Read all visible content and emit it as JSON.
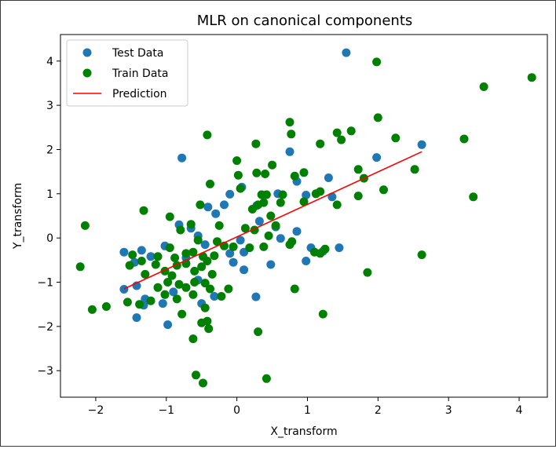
{
  "chart_data": {
    "type": "scatter",
    "title": "MLR on canonical components",
    "xlabel": "X_transform",
    "ylabel": "Y_transform",
    "xlim": [
      -2.5,
      4.4
    ],
    "ylim": [
      -3.6,
      4.6
    ],
    "xticks": [
      -2,
      -1,
      0,
      1,
      2,
      3,
      4
    ],
    "yticks": [
      -3,
      -2,
      -1,
      0,
      1,
      2,
      3,
      4
    ],
    "xtick_labels": [
      "−2",
      "−1",
      "0",
      "1",
      "2",
      "3",
      "4"
    ],
    "ytick_labels": [
      "−3",
      "−2",
      "−1",
      "0",
      "1",
      "2",
      "3",
      "4"
    ],
    "grid": false,
    "legend_position": "top-left",
    "series": [
      {
        "name": "Test Data",
        "kind": "scatter",
        "color": "#1f77b4",
        "points": [
          [
            1.55,
            4.19
          ],
          [
            -0.78,
            1.81
          ],
          [
            0.75,
            1.95
          ],
          [
            1.98,
            1.82
          ],
          [
            2.62,
            2.11
          ],
          [
            1.3,
            1.36
          ],
          [
            0.85,
            1.28
          ],
          [
            -0.1,
            0.99
          ],
          [
            0.07,
            1.15
          ],
          [
            0.28,
            0.73
          ],
          [
            0.58,
            1.0
          ],
          [
            0.98,
            0.97
          ],
          [
            1.35,
            0.93
          ],
          [
            -0.3,
            0.55
          ],
          [
            -0.41,
            0.7
          ],
          [
            -0.18,
            0.75
          ],
          [
            -0.82,
            0.3
          ],
          [
            -0.65,
            0.22
          ],
          [
            0.32,
            0.38
          ],
          [
            0.55,
            0.25
          ],
          [
            0.85,
            0.15
          ],
          [
            -1.6,
            -0.32
          ],
          [
            -1.35,
            -0.28
          ],
          [
            -1.45,
            -0.55
          ],
          [
            -1.22,
            -0.42
          ],
          [
            -1.02,
            -0.18
          ],
          [
            -0.45,
            -0.15
          ],
          [
            -0.1,
            -0.35
          ],
          [
            -0.05,
            -0.55
          ],
          [
            0.1,
            -0.32
          ],
          [
            0.48,
            -0.6
          ],
          [
            0.62,
            -0.01
          ],
          [
            1.05,
            -0.22
          ],
          [
            1.22,
            -0.3
          ],
          [
            1.45,
            -0.22
          ],
          [
            0.98,
            -0.52
          ],
          [
            0.1,
            -0.72
          ],
          [
            -1.6,
            -1.16
          ],
          [
            -1.42,
            -1.08
          ],
          [
            -1.3,
            -1.38
          ],
          [
            -1.32,
            -1.52
          ],
          [
            -1.05,
            -1.48
          ],
          [
            -0.9,
            -1.22
          ],
          [
            -0.5,
            -1.48
          ],
          [
            -0.32,
            -1.32
          ],
          [
            -1.42,
            -1.8
          ],
          [
            -0.98,
            -1.96
          ],
          [
            0.27,
            -1.33
          ],
          [
            -0.55,
            -0.95
          ],
          [
            -0.72,
            -0.45
          ],
          [
            -0.55,
            0.05
          ],
          [
            0.05,
            -0.05
          ]
        ]
      },
      {
        "name": "Train Data",
        "kind": "scatter",
        "color": "#008000",
        "points": [
          [
            1.98,
            3.98
          ],
          [
            3.5,
            3.42
          ],
          [
            4.18,
            3.63
          ],
          [
            2.0,
            2.72
          ],
          [
            0.75,
            2.62
          ],
          [
            -0.42,
            2.33
          ],
          [
            0.77,
            2.35
          ],
          [
            1.42,
            2.38
          ],
          [
            1.62,
            2.42
          ],
          [
            1.48,
            2.22
          ],
          [
            2.25,
            2.26
          ],
          [
            3.22,
            2.24
          ],
          [
            0.27,
            2.13
          ],
          [
            1.18,
            2.13
          ],
          [
            1.72,
            1.55
          ],
          [
            1.8,
            1.35
          ],
          [
            2.52,
            1.55
          ],
          [
            0.0,
            1.75
          ],
          [
            0.28,
            1.47
          ],
          [
            0.4,
            1.45
          ],
          [
            0.5,
            1.65
          ],
          [
            0.82,
            1.4
          ],
          [
            0.95,
            1.48
          ],
          [
            0.02,
            1.42
          ],
          [
            0.05,
            1.12
          ],
          [
            0.35,
            0.98
          ],
          [
            0.42,
            0.98
          ],
          [
            0.65,
            0.98
          ],
          [
            1.12,
            1.0
          ],
          [
            1.18,
            1.05
          ],
          [
            1.72,
            0.95
          ],
          [
            2.08,
            1.09
          ],
          [
            3.35,
            0.93
          ],
          [
            -0.38,
            1.22
          ],
          [
            -0.52,
            0.75
          ],
          [
            0.3,
            0.75
          ],
          [
            0.38,
            0.8
          ],
          [
            0.62,
            0.8
          ],
          [
            0.95,
            0.82
          ],
          [
            1.42,
            0.75
          ],
          [
            -1.32,
            0.62
          ],
          [
            -0.95,
            0.48
          ],
          [
            -0.25,
            0.28
          ],
          [
            0.22,
            0.65
          ],
          [
            0.48,
            0.5
          ],
          [
            0.55,
            0.28
          ],
          [
            -2.15,
            0.28
          ],
          [
            -0.65,
            0.31
          ],
          [
            -0.8,
            0.18
          ],
          [
            -0.55,
            -0.05
          ],
          [
            -0.28,
            -0.08
          ],
          [
            -0.18,
            -0.18
          ],
          [
            0.12,
            0.22
          ],
          [
            0.25,
            0.18
          ],
          [
            0.45,
            0.05
          ],
          [
            0.78,
            -0.08
          ],
          [
            -1.48,
            -0.38
          ],
          [
            -1.35,
            -0.52
          ],
          [
            -1.12,
            -0.42
          ],
          [
            -0.95,
            -0.22
          ],
          [
            -0.88,
            -0.45
          ],
          [
            -0.72,
            -0.35
          ],
          [
            -0.62,
            -0.32
          ],
          [
            -0.48,
            -0.42
          ],
          [
            -0.32,
            -0.4
          ],
          [
            -0.05,
            -0.2
          ],
          [
            0.18,
            -0.22
          ],
          [
            0.38,
            -0.2
          ],
          [
            0.75,
            -0.15
          ],
          [
            1.1,
            -0.32
          ],
          [
            1.18,
            -0.35
          ],
          [
            1.25,
            -0.25
          ],
          [
            2.62,
            -0.38
          ],
          [
            -2.22,
            -0.65
          ],
          [
            -1.52,
            -0.62
          ],
          [
            -1.3,
            -0.82
          ],
          [
            -1.15,
            -0.6
          ],
          [
            -1.02,
            -0.75
          ],
          [
            -0.92,
            -0.85
          ],
          [
            -0.85,
            -0.62
          ],
          [
            -0.72,
            -0.58
          ],
          [
            -0.6,
            -0.75
          ],
          [
            -0.5,
            -0.65
          ],
          [
            -0.42,
            -0.52
          ],
          [
            -0.35,
            -0.82
          ],
          [
            1.85,
            -0.78
          ],
          [
            -1.12,
            -1.12
          ],
          [
            -0.98,
            -1.0
          ],
          [
            -0.82,
            -1.05
          ],
          [
            -0.72,
            -1.12
          ],
          [
            -0.6,
            -1.0
          ],
          [
            -0.45,
            -1.02
          ],
          [
            -0.38,
            -1.15
          ],
          [
            -0.22,
            -1.32
          ],
          [
            -0.12,
            -1.15
          ],
          [
            0.82,
            -1.15
          ],
          [
            -1.55,
            -1.45
          ],
          [
            -1.38,
            -1.5
          ],
          [
            -1.22,
            -1.42
          ],
          [
            -1.02,
            -1.28
          ],
          [
            -0.85,
            -1.38
          ],
          [
            -0.62,
            -1.28
          ],
          [
            -0.45,
            -1.58
          ],
          [
            -2.05,
            -1.62
          ],
          [
            -1.85,
            -1.55
          ],
          [
            -0.78,
            -1.72
          ],
          [
            1.22,
            -1.72
          ],
          [
            -0.42,
            -1.88
          ],
          [
            -0.5,
            -1.92
          ],
          [
            -0.4,
            -2.05
          ],
          [
            0.3,
            -2.12
          ],
          [
            -0.62,
            -2.28
          ],
          [
            -0.58,
            -3.1
          ],
          [
            -0.48,
            -3.28
          ],
          [
            0.42,
            -3.18
          ]
        ]
      },
      {
        "name": "Prediction",
        "kind": "line",
        "color": "#ff0000",
        "points": [
          [
            -1.6,
            -1.15
          ],
          [
            2.62,
            1.95
          ]
        ]
      }
    ]
  }
}
